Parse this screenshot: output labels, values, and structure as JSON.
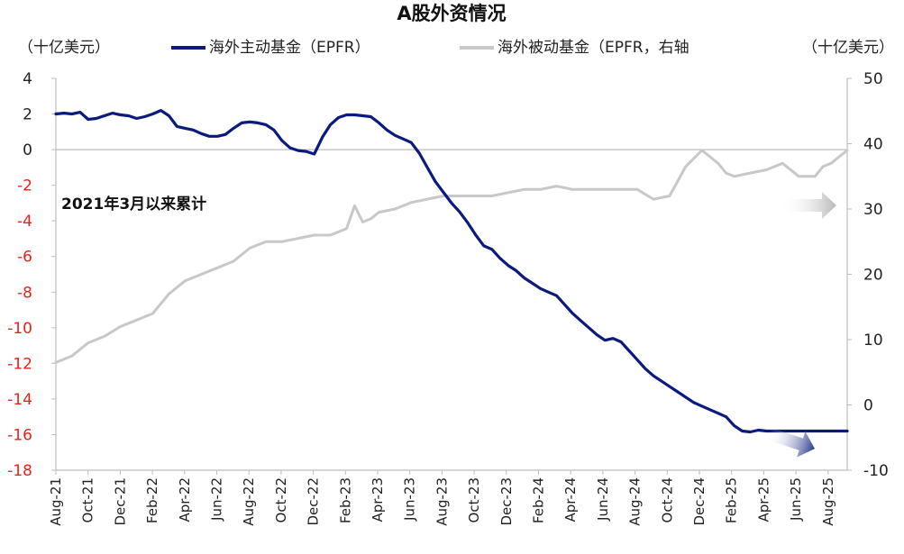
{
  "chart_data": {
    "type": "line",
    "title": "A股外资情况",
    "y_left_unit": "（十亿美元）",
    "y_right_unit": "（十亿美元）",
    "annotation": "2021年3月以来累计",
    "y_left": {
      "min": -18,
      "max": 4,
      "ticks": [
        "4",
        "2",
        "0",
        "-2",
        "-4",
        "-6",
        "-8",
        "-10",
        "-12",
        "-14",
        "-16",
        "-18"
      ],
      "negative_color": "#e8231b",
      "positive_color": "#222222"
    },
    "y_right": {
      "min": -10,
      "max": 50,
      "ticks": [
        "50",
        "40",
        "30",
        "20",
        "10",
        "0",
        "-10"
      ]
    },
    "x_tick_labels": [
      "Aug-21",
      "Oct-21",
      "Dec-21",
      "Feb-22",
      "Apr-22",
      "Jun-22",
      "Aug-22",
      "Oct-22",
      "Dec-22",
      "Feb-23",
      "Apr-23",
      "Jun-23",
      "Aug-23",
      "Oct-23",
      "Dec-23",
      "Feb-24",
      "Apr-24",
      "Jun-24",
      "Aug-24",
      "Oct-24",
      "Dec-24",
      "Feb-25",
      "Apr-25",
      "Jun-25",
      "Aug-25"
    ],
    "grid": false,
    "legend_position": "top",
    "series": [
      {
        "name": "海外主动基金（EPFR）",
        "axis": "left",
        "color": "#0b1a7e",
        "x": [
          0,
          0.5,
          1,
          1.5,
          2,
          2.5,
          3,
          3.5,
          4,
          4.5,
          5,
          5.5,
          6,
          6.5,
          7,
          7.5,
          8,
          8.5,
          9,
          9.5,
          10,
          10.5,
          11,
          11.5,
          12,
          12.5,
          13,
          13.5,
          14,
          14.5,
          15,
          15.5,
          16,
          16.5,
          17,
          17.5,
          18,
          18.5,
          19,
          19.5,
          20,
          20.5,
          21,
          21.5,
          22,
          22.5,
          23,
          23.5,
          24,
          24.5,
          25,
          25.5,
          26,
          26.5,
          27,
          27.5,
          28,
          28.5,
          29,
          29.5,
          30,
          30.5,
          31,
          31.5,
          32,
          32.5,
          33,
          33.5,
          34,
          34.5,
          35,
          35.5,
          36,
          36.5,
          37,
          37.5,
          38,
          38.5,
          39,
          39.5,
          40,
          40.5,
          41,
          41.5,
          42,
          42.5,
          43,
          43.5,
          44,
          44.5,
          45,
          45.5,
          46,
          46.5,
          47,
          47.5,
          48,
          48.5,
          49
        ],
        "y": [
          2.0,
          2.05,
          2.0,
          2.1,
          1.7,
          1.75,
          1.9,
          2.05,
          1.95,
          1.9,
          1.75,
          1.85,
          2.0,
          2.2,
          1.9,
          1.3,
          1.2,
          1.1,
          0.9,
          0.75,
          0.75,
          0.85,
          1.2,
          1.5,
          1.55,
          1.5,
          1.4,
          1.1,
          0.5,
          0.1,
          -0.05,
          -0.1,
          -0.25,
          0.7,
          1.4,
          1.8,
          1.95,
          1.95,
          1.9,
          1.85,
          1.5,
          1.1,
          0.8,
          0.6,
          0.4,
          -0.2,
          -1.0,
          -1.8,
          -2.4,
          -3.0,
          -3.5,
          -4.1,
          -4.8,
          -5.4,
          -5.6,
          -6.1,
          -6.5,
          -6.8,
          -7.2,
          -7.5,
          -7.8,
          -8.0,
          -8.2,
          -8.7,
          -9.2,
          -9.6,
          -10.0,
          -10.4,
          -10.7,
          -10.6,
          -10.8,
          -11.3,
          -11.8,
          -12.3,
          -12.7,
          -13.0,
          -13.3,
          -13.6,
          -13.9,
          -14.2,
          -14.4,
          -14.6,
          -14.8,
          -15.0,
          -15.5,
          -15.8,
          -15.85,
          -15.75,
          -15.8,
          -15.8,
          -15.8,
          -15.8,
          -15.8,
          -15.8,
          -15.8,
          -15.8,
          -15.8,
          -15.8,
          -15.8
        ]
      },
      {
        "name": "海外被动基金（EPFR，右轴",
        "axis": "right",
        "color": "#c8c8c8",
        "x": [
          0,
          1,
          2,
          3,
          4,
          5,
          6,
          7,
          8,
          9,
          10,
          11,
          12,
          13,
          14,
          15,
          16,
          17,
          18,
          18.5,
          19,
          19.5,
          20,
          21,
          22,
          23,
          24,
          25,
          26,
          27,
          28,
          29,
          30,
          31,
          32,
          33,
          34,
          35,
          36,
          37,
          38,
          39,
          40,
          40.5,
          41,
          41.5,
          42,
          43,
          44,
          45,
          46,
          47,
          47.5,
          48,
          48.5,
          49
        ],
        "y": [
          6.5,
          7.5,
          9.5,
          10.5,
          12,
          13,
          14,
          17,
          19,
          20,
          21,
          22,
          24,
          25,
          25,
          25.5,
          26,
          26,
          27,
          30.5,
          28,
          28.5,
          29.5,
          30,
          31,
          31.5,
          32,
          32,
          32,
          32,
          32.5,
          33,
          33,
          33.5,
          33,
          33,
          33,
          33,
          33,
          31.5,
          32,
          36.5,
          39,
          38,
          37,
          35.5,
          35,
          35.5,
          36,
          37,
          35,
          35,
          36.5,
          37,
          38,
          39
        ]
      }
    ],
    "visible_range_note": ""
  }
}
